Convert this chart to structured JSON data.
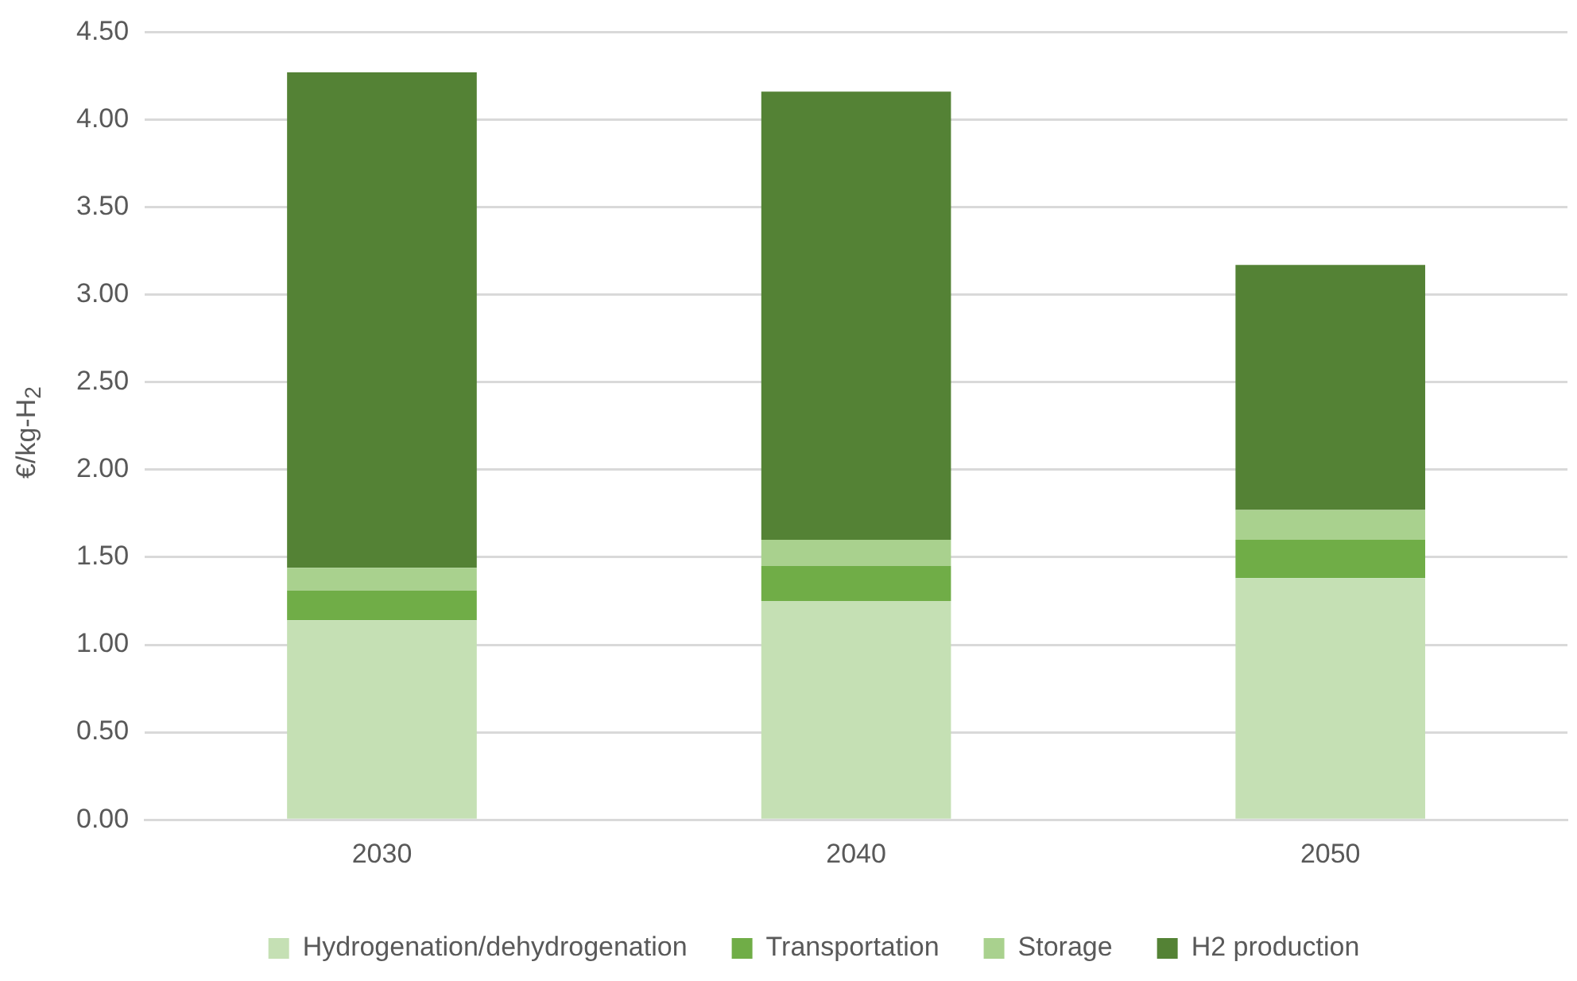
{
  "chart_data": {
    "type": "bar",
    "stacked": true,
    "ylabel": "€/kg-H$_{2}$",
    "categories": [
      "2030",
      "2040",
      "2050"
    ],
    "series": [
      {
        "name": "Hydrogenation/dehydrogenation",
        "color": "#c5e0b4",
        "values": [
          1.14,
          1.25,
          1.38
        ]
      },
      {
        "name": "Transportation",
        "color": "#70ad47",
        "values": [
          0.17,
          0.2,
          0.22
        ]
      },
      {
        "name": "Storage",
        "color": "#a9d18e",
        "values": [
          0.13,
          0.15,
          0.17
        ]
      },
      {
        "name": "H2 production",
        "color": "#548235",
        "values": [
          2.83,
          2.56,
          1.4
        ]
      }
    ],
    "ylim": [
      0,
      4.5
    ],
    "yticks": [
      {
        "value": 0,
        "label": "0.00"
      },
      {
        "value": 0.5,
        "label": "0.50"
      },
      {
        "value": 1,
        "label": "1.00"
      },
      {
        "value": 1.5,
        "label": "1.50"
      },
      {
        "value": 2,
        "label": "2.00"
      },
      {
        "value": 2.5,
        "label": "2.50"
      },
      {
        "value": 3,
        "label": "3.00"
      },
      {
        "value": 3.5,
        "label": "3.50"
      },
      {
        "value": 4,
        "label": "4.00"
      },
      {
        "value": 4.5,
        "label": "4.50"
      }
    ],
    "grid": "y",
    "legend": "bottom"
  }
}
